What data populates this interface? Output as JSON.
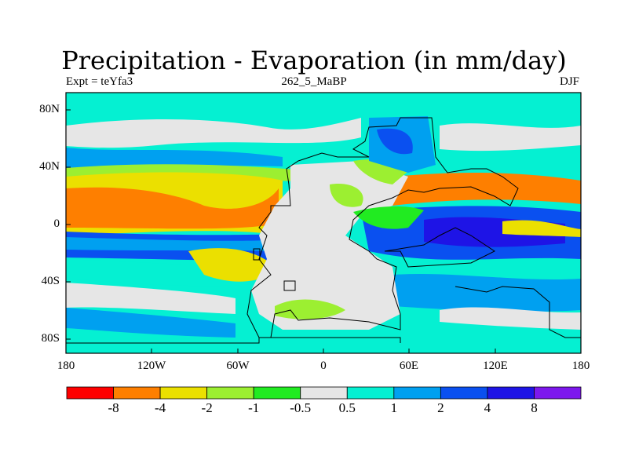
{
  "title": "Precipitation - Evaporation (in mm/day)",
  "subtitle_left": "Expt = teYfa3",
  "subtitle_center": "262_5_MaBP",
  "subtitle_right": "DJF",
  "y_ticks": [
    "80N",
    "40N",
    "0",
    "40S",
    "80S"
  ],
  "x_ticks": [
    "180",
    "120W",
    "60W",
    "0",
    "60E",
    "120E",
    "180"
  ],
  "colorbar": {
    "colors": [
      "#fe0000",
      "#fe7f00",
      "#ebe000",
      "#9cef31",
      "#21eb21",
      "#e6e6e6",
      "#05f0d2",
      "#00a0f0",
      "#0a50f0",
      "#1e14e6",
      "#7d18ed"
    ],
    "labels": [
      "-8",
      "-4",
      "-2",
      "-1",
      "-0.5",
      "0.5",
      "1",
      "2",
      "4",
      "8"
    ]
  }
}
